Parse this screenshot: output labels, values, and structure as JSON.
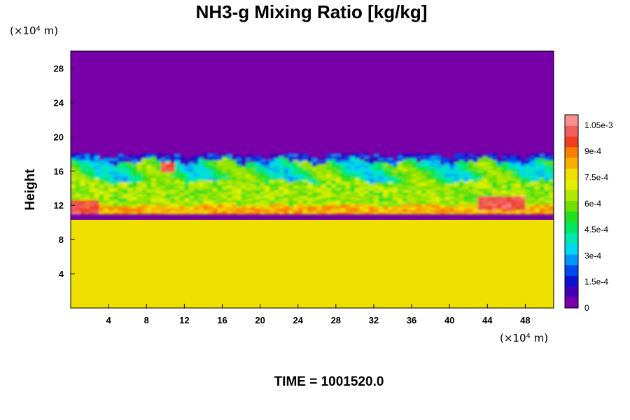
{
  "chart_data": {
    "type": "heatmap",
    "title": "NH3-g Mixing Ratio [kg/kg]",
    "ylabel": "Height",
    "xunit_prefix": "(×10",
    "xunit_exp": "4",
    "xunit_suffix": " m)",
    "yunit_prefix": "(×10",
    "yunit_exp": "4",
    "yunit_suffix": " m)",
    "xlim": [
      0,
      51
    ],
    "ylim": [
      0,
      30
    ],
    "x_ticks": [
      "4",
      "8",
      "12",
      "16",
      "20",
      "24",
      "28",
      "32",
      "36",
      "40",
      "44",
      "48"
    ],
    "y_ticks": [
      "4",
      "8",
      "12",
      "16",
      "20",
      "24",
      "28"
    ],
    "colorbar": {
      "range": [
        0,
        0.00111
      ],
      "ticks": [
        "0",
        "1.5e-4",
        "3e-4",
        "4.5e-4",
        "6e-4",
        "7.5e-4",
        "9e-4",
        "1.05e-3"
      ],
      "colors": [
        "#7800a8",
        "#4400b8",
        "#1010d0",
        "#0048f0",
        "#0098f8",
        "#00d8f0",
        "#00e8b0",
        "#00e860",
        "#20e020",
        "#70e000",
        "#b0e800",
        "#e0f000",
        "#f0e000",
        "#f8b000",
        "#f88000",
        "#f04020",
        "#f06060",
        "#f89090"
      ]
    },
    "regions": {
      "upper_value": 0.0,
      "lower_value": 0.00076,
      "lower_top_height": 10.3,
      "transition_base": 11,
      "transition_top": 18
    },
    "time_label": "TIME = 1001520.0"
  }
}
